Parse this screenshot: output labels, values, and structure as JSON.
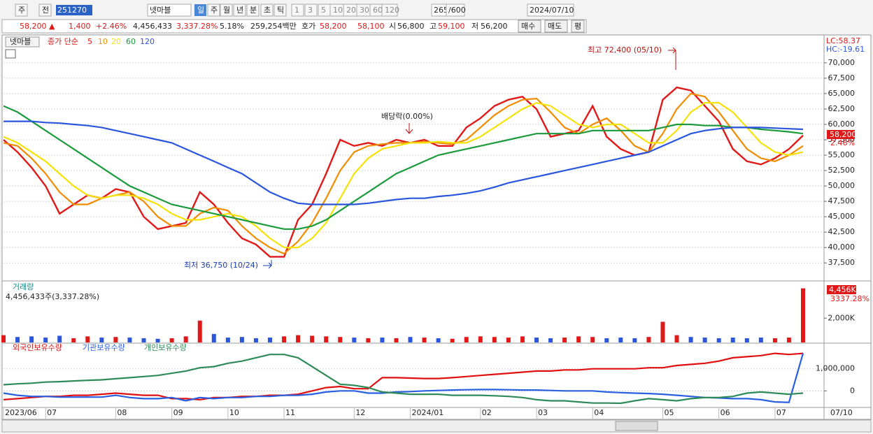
{
  "toolbar": {
    "row1": [
      "주",
      "전",
      "251270",
      "넷마블",
      "일",
      "주",
      "월",
      "년",
      "분",
      "초",
      "틱",
      "1",
      "3",
      "5",
      "10",
      "20",
      "30",
      "60",
      "120",
      "265",
      "/600",
      "2024/07/10"
    ],
    "row2": [
      "58,200 ▲",
      "1,400",
      "+2.46%",
      "4,456,433",
      "3,337.28%",
      "5.18%",
      "259,254백만",
      "호가",
      "58,200",
      "58,100",
      "시",
      "56,800",
      "고",
      "59,100",
      "저",
      "56,200",
      "매수",
      "매도",
      "평"
    ]
  },
  "chart_data": [
    {
      "type": "line",
      "title": "넷마블",
      "subtitle": "종가 단순",
      "annotations": [
        "최고 72,400 (05/10)",
        "최저 36,750 (10/24)",
        "배당락(0.00%)",
        "LC:58.37",
        "HC:-19.61",
        "58,200",
        "2.46%"
      ],
      "ylim": [
        34800,
        74300
      ],
      "yticks": [
        {
          "value": 37500,
          "label": "37,500"
        },
        {
          "value": 40000,
          "label": "40,000"
        },
        {
          "value": 42500,
          "label": "42,500"
        },
        {
          "value": 45000,
          "label": "45,000"
        },
        {
          "value": 47500,
          "label": "47,500"
        },
        {
          "value": 50000,
          "label": "50,000"
        },
        {
          "value": 52500,
          "label": "52,500"
        },
        {
          "value": 55000,
          "label": "55,000"
        },
        {
          "value": 57500,
          "label": "57,500"
        },
        {
          "value": 60000,
          "label": "60,000"
        },
        {
          "value": 62500,
          "label": "62,500"
        },
        {
          "value": 65000,
          "label": "65,000"
        },
        {
          "value": 67500,
          "label": "67,500"
        },
        {
          "value": 70000,
          "label": "70,000"
        }
      ],
      "grid": true,
      "series": [
        {
          "name": "5",
          "color": "#e01818",
          "values": [
            57500,
            55500,
            53000,
            50000,
            45500,
            47000,
            48500,
            48000,
            49500,
            49000,
            45000,
            43000,
            43500,
            44000,
            49000,
            47000,
            44000,
            41500,
            40500,
            38500,
            38500,
            44500,
            47000,
            52000,
            57500,
            56500,
            57000,
            56500,
            57500,
            57000,
            57500,
            56500,
            56500,
            59500,
            61000,
            63000,
            64000,
            64500,
            62500,
            58000,
            58500,
            59000,
            63000,
            58000,
            56000,
            55000,
            55500,
            64000,
            66000,
            65500,
            63000,
            60500,
            56000,
            54000,
            53500,
            54500,
            56000,
            58200
          ]
        },
        {
          "name": "10",
          "color": "#f08c00",
          "values": [
            57000,
            56500,
            54500,
            52000,
            49000,
            47000,
            47000,
            48000,
            48500,
            49000,
            47500,
            45000,
            43500,
            43500,
            45500,
            46500,
            46000,
            43500,
            41500,
            40000,
            39000,
            41000,
            44000,
            48000,
            52500,
            55500,
            56500,
            56800,
            57000,
            57000,
            57200,
            57000,
            56800,
            57500,
            59500,
            61500,
            63000,
            64000,
            64200,
            62000,
            59500,
            58500,
            60000,
            61000,
            59000,
            56500,
            55500,
            58500,
            62500,
            65000,
            64500,
            62000,
            59000,
            56000,
            54500,
            54000,
            55000,
            56500
          ]
        },
        {
          "name": "20",
          "color": "#f5e20a",
          "values": [
            58000,
            57000,
            55500,
            54000,
            52000,
            50000,
            48500,
            48000,
            48500,
            48500,
            48000,
            47000,
            45500,
            44500,
            44500,
            45000,
            45500,
            45000,
            43500,
            41500,
            40000,
            40000,
            41500,
            44000,
            48000,
            52000,
            54500,
            56000,
            56500,
            57000,
            57000,
            57200,
            57000,
            57000,
            58000,
            59500,
            61000,
            62500,
            63500,
            63000,
            61500,
            60000,
            59500,
            60000,
            60000,
            58500,
            57000,
            57000,
            59000,
            62000,
            63500,
            63500,
            62000,
            59500,
            57000,
            55500,
            55000,
            55500
          ]
        },
        {
          "name": "60",
          "color": "#1b9a3c",
          "values": [
            63000,
            62000,
            60500,
            59000,
            57500,
            56000,
            54500,
            53000,
            51500,
            50000,
            49000,
            48000,
            47000,
            46500,
            46000,
            45500,
            45000,
            44500,
            44000,
            43500,
            43000,
            43000,
            43500,
            44500,
            46000,
            47500,
            49000,
            50500,
            52000,
            53000,
            54000,
            55000,
            55500,
            56000,
            56500,
            57000,
            57500,
            58000,
            58500,
            58500,
            58500,
            58500,
            59000,
            59000,
            59000,
            59000,
            59000,
            59500,
            60000,
            60000,
            59800,
            59800,
            59500,
            59500,
            59200,
            59000,
            58800,
            58500
          ]
        },
        {
          "name": "120",
          "color": "#2a55dd",
          "values": [
            60500,
            60500,
            60500,
            60300,
            60200,
            60000,
            59800,
            59500,
            59000,
            58500,
            58000,
            57500,
            57000,
            56000,
            55000,
            54000,
            53000,
            52000,
            50500,
            49000,
            48000,
            47200,
            47000,
            47000,
            47000,
            47000,
            47200,
            47500,
            47800,
            48000,
            48000,
            48300,
            48500,
            48800,
            49200,
            49800,
            50500,
            51000,
            51500,
            52000,
            52500,
            53000,
            53500,
            54000,
            54500,
            55000,
            55500,
            56500,
            57500,
            58500,
            59000,
            59300,
            59500,
            59500,
            59500,
            59400,
            59300,
            59200
          ]
        }
      ]
    },
    {
      "type": "bar",
      "title": "거래량",
      "subtitle": "4,456,433주(3,337.28%)",
      "annotations": [
        "3337.28%"
      ],
      "ylim": [
        0,
        4950
      ],
      "yticks": [
        {
          "value": 2000,
          "label": "2,000K"
        }
      ],
      "values": [
        600,
        450,
        500,
        400,
        550,
        350,
        500,
        400,
        450,
        400,
        350,
        300,
        350,
        500,
        1800,
        700,
        400,
        450,
        350,
        400,
        500,
        600,
        550,
        500,
        450,
        400,
        350,
        400,
        350,
        450,
        400,
        350,
        300,
        450,
        500,
        450,
        400,
        500,
        400,
        350,
        400,
        500,
        450,
        350,
        400,
        350,
        450,
        1700,
        600,
        450,
        400,
        350,
        400,
        350,
        400,
        350,
        400,
        4456
      ],
      "value_labels": [
        null,
        null,
        null,
        null,
        null,
        null,
        null,
        null,
        null,
        null,
        null,
        null,
        null,
        null,
        null,
        null,
        null,
        null,
        null,
        null,
        null,
        null,
        null,
        null,
        null,
        null,
        null,
        null,
        null,
        null,
        null,
        null,
        null,
        null,
        null,
        null,
        null,
        null,
        null,
        null,
        null,
        null,
        null,
        null,
        null,
        null,
        null,
        null,
        null,
        null,
        null,
        null,
        null,
        null,
        null,
        null,
        null,
        "4,456K"
      ],
      "colors": {
        "up": "#e01818",
        "down": "#2a55dd"
      }
    },
    {
      "type": "line",
      "ylim": [
        -750000,
        2100000
      ],
      "yticks": [
        {
          "value": 1000000,
          "label": "1,000,000"
        },
        0
      ],
      "grid": true,
      "categories": [
        "2023/06",
        null,
        null,
        "07",
        null,
        null,
        null,
        null,
        "08",
        null,
        null,
        null,
        "09",
        null,
        null,
        null,
        "10",
        null,
        null,
        null,
        "11",
        null,
        null,
        null,
        null,
        "12",
        null,
        null,
        null,
        "2024/01",
        null,
        null,
        null,
        null,
        "02",
        null,
        null,
        null,
        "03",
        null,
        null,
        null,
        "04",
        null,
        null,
        null,
        null,
        "05",
        null,
        null,
        null,
        "06",
        null,
        null,
        null,
        "07",
        null,
        null
      ],
      "x_end_label": "07/10",
      "series": [
        {
          "name": "외국인보유수량",
          "color": "#e01010",
          "values": [
            -400000,
            -350000,
            -300000,
            -250000,
            -250000,
            -200000,
            -200000,
            -150000,
            -100000,
            -150000,
            -200000,
            -200000,
            -350000,
            -350000,
            -400000,
            -300000,
            -300000,
            -250000,
            -250000,
            -200000,
            -200000,
            -150000,
            0,
            150000,
            200000,
            100000,
            100000,
            600000,
            600000,
            580000,
            560000,
            560000,
            600000,
            650000,
            700000,
            750000,
            800000,
            850000,
            900000,
            900000,
            950000,
            950000,
            1000000,
            1000000,
            1000000,
            1000000,
            1050000,
            1050000,
            1150000,
            1200000,
            1250000,
            1350000,
            1500000,
            1550000,
            1600000,
            1700000,
            1650000,
            1700000
          ]
        },
        {
          "name": "기관보유수량",
          "color": "#2a5fe0",
          "values": [
            -100000,
            -200000,
            -250000,
            -250000,
            -280000,
            -280000,
            -280000,
            -280000,
            -200000,
            -300000,
            -350000,
            -350000,
            -300000,
            -450000,
            -300000,
            -350000,
            -300000,
            -300000,
            -250000,
            -250000,
            -200000,
            -200000,
            -150000,
            -50000,
            0,
            0,
            -100000,
            -100000,
            -50000,
            -30000,
            0,
            20000,
            40000,
            50000,
            60000,
            60000,
            50000,
            40000,
            40000,
            20000,
            0,
            0,
            0,
            -50000,
            -80000,
            -100000,
            -120000,
            -150000,
            -200000,
            -250000,
            -300000,
            -320000,
            -350000,
            -350000,
            -400000,
            -500000,
            -520000,
            1700000
          ]
        },
        {
          "name": "개인보유수량",
          "color": "#2e8b57",
          "values": [
            280000,
            320000,
            350000,
            400000,
            420000,
            450000,
            480000,
            500000,
            550000,
            600000,
            650000,
            700000,
            800000,
            900000,
            1050000,
            1100000,
            1250000,
            1350000,
            1500000,
            1650000,
            1650000,
            1500000,
            1100000,
            700000,
            300000,
            250000,
            150000,
            -50000,
            -100000,
            -150000,
            -150000,
            -150000,
            -200000,
            -200000,
            -200000,
            -220000,
            -250000,
            -300000,
            -400000,
            -450000,
            -450000,
            -500000,
            -550000,
            -550000,
            -560000,
            -450000,
            -350000,
            -400000,
            -450000,
            -350000,
            -300000,
            -300000,
            -250000,
            -100000,
            -50000,
            -100000,
            -150000,
            -100000
          ]
        }
      ]
    }
  ]
}
